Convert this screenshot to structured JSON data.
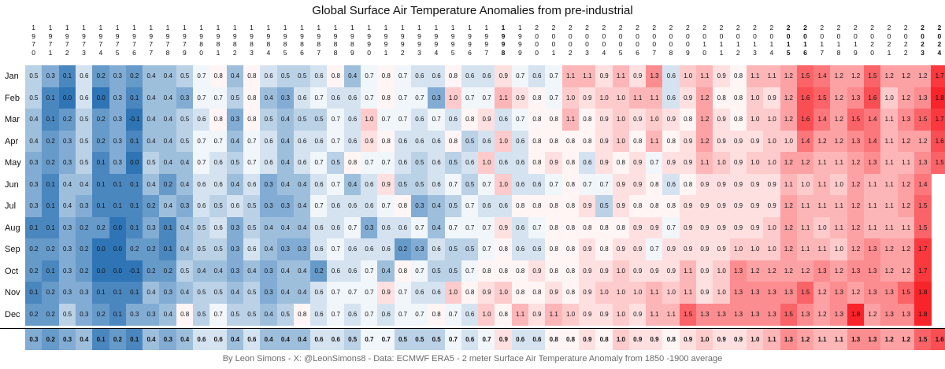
{
  "chart_data": {
    "type": "heatmap",
    "title": "Global Surface Air Temperature Anomalies from pre-industrial",
    "footer": "By Leon Simons - X: @LeonSimons8 - Data: ECMWF ERA5 - 2 meter Surface Air Temperature Anomaly from 1850 -1900 average",
    "years": [
      "1970",
      "1971",
      "1972",
      "1973",
      "1974",
      "1975",
      "1976",
      "1977",
      "1978",
      "1979",
      "1980",
      "1981",
      "1982",
      "1983",
      "1984",
      "1985",
      "1986",
      "1987",
      "1988",
      "1989",
      "1990",
      "1991",
      "1992",
      "1993",
      "1994",
      "1995",
      "1996",
      "1997",
      "1998",
      "1999",
      "2000",
      "2001",
      "2002",
      "2003",
      "2004",
      "2005",
      "2006",
      "2007",
      "2008",
      "2009",
      "2010",
      "2011",
      "2012",
      "2013",
      "2014",
      "2015",
      "2016",
      "2017",
      "2018",
      "2019",
      "2020",
      "2021",
      "2022",
      "2023",
      "2024"
    ],
    "bold_years": [
      "1998",
      "2015",
      "2016",
      "2023",
      "2024"
    ],
    "months": [
      "Jan",
      "Feb",
      "Mar",
      "Apr",
      "May",
      "Jun",
      "Jul",
      "Aug",
      "Sep",
      "Oct",
      "Nov",
      "Dec"
    ],
    "color_scale": {
      "low": "#2f75b5",
      "mid": "#ffffff",
      "high": "#f8242a",
      "min": 0.0,
      "mid_value": 0.75,
      "max": 1.8
    },
    "values": [
      [
        "0.5",
        "0.3",
        "0.1",
        "0.6",
        "0.2",
        "0.3",
        "0.2",
        "0.4",
        "0.4",
        "0.5",
        "0.7",
        "0.8",
        "0.4",
        "0.8",
        "0.6",
        "0.5",
        "0.5",
        "0.6",
        "0.8",
        "0.4",
        "0.7",
        "0.8",
        "0.7",
        "0.6",
        "0.6",
        "0.8",
        "0.6",
        "0.6",
        "0.9",
        "0.7",
        "0.6",
        "0.7",
        "1.1",
        "1.1",
        "0.9",
        "1.1",
        "0.9",
        "1.3",
        "0.6",
        "1.0",
        "1.1",
        "0.9",
        "0.8",
        "1.1",
        "1.1",
        "1.2",
        "1.5",
        "1.4",
        "1.2",
        "1.2",
        "1.5",
        "1.2",
        "1.2",
        "1.2",
        "1.7"
      ],
      [
        "0.5",
        "0.1",
        "0.0",
        "0.6",
        "0.0",
        "0.3",
        "0.1",
        "0.4",
        "0.4",
        "0.3",
        "0.7",
        "0.7",
        "0.5",
        "0.8",
        "0.4",
        "0.3",
        "0.6",
        "0.7",
        "0.6",
        "0.6",
        "0.7",
        "0.8",
        "0.7",
        "0.7",
        "0.3",
        "1.0",
        "0.7",
        "0.7",
        "1.1",
        "0.9",
        "0.8",
        "0.7",
        "1.0",
        "0.9",
        "1.0",
        "1.0",
        "1.1",
        "1.1",
        "0.6",
        "0.9",
        "1.2",
        "0.8",
        "0.8",
        "1.0",
        "0.9",
        "1.2",
        "1.6",
        "1.5",
        "1.2",
        "1.3",
        "1.6",
        "1.0",
        "1.2",
        "1.3",
        "1.8"
      ],
      [
        "0.4",
        "0.1",
        "0.2",
        "0.5",
        "0.2",
        "0.3",
        "-0.1",
        "0.4",
        "0.4",
        "0.5",
        "0.6",
        "0.8",
        "0.3",
        "0.8",
        "0.5",
        "0.4",
        "0.5",
        "0.5",
        "0.7",
        "0.6",
        "1.0",
        "0.7",
        "0.7",
        "0.6",
        "0.7",
        "0.6",
        "0.8",
        "0.9",
        "0.6",
        "0.7",
        "0.8",
        "0.8",
        "1.1",
        "0.8",
        "0.9",
        "1.0",
        "0.9",
        "1.0",
        "0.9",
        "0.8",
        "1.2",
        "0.9",
        "0.8",
        "1.0",
        "1.0",
        "1.2",
        "1.6",
        "1.4",
        "1.2",
        "1.5",
        "1.4",
        "1.1",
        "1.3",
        "1.5",
        "1.7"
      ],
      [
        "0.4",
        "0.2",
        "0.3",
        "0.5",
        "0.2",
        "0.3",
        "0.1",
        "0.4",
        "0.4",
        "0.5",
        "0.7",
        "0.7",
        "0.4",
        "0.7",
        "0.6",
        "0.4",
        "0.6",
        "0.6",
        "0.7",
        "0.6",
        "0.9",
        "0.8",
        "0.6",
        "0.6",
        "0.6",
        "0.8",
        "0.5",
        "0.6",
        "1.0",
        "0.6",
        "0.8",
        "0.8",
        "0.8",
        "0.8",
        "0.9",
        "1.0",
        "0.8",
        "1.1",
        "0.8",
        "0.9",
        "1.2",
        "0.9",
        "0.9",
        "0.9",
        "1.0",
        "1.0",
        "1.4",
        "1.2",
        "1.2",
        "1.3",
        "1.4",
        "1.1",
        "1.2",
        "1.2",
        "1.6"
      ],
      [
        "0.3",
        "0.2",
        "0.3",
        "0.5",
        "0.1",
        "0.3",
        "0.0",
        "0.5",
        "0.4",
        "0.4",
        "0.7",
        "0.6",
        "0.5",
        "0.7",
        "0.6",
        "0.4",
        "0.6",
        "0.7",
        "0.5",
        "0.8",
        "0.7",
        "0.7",
        "0.6",
        "0.5",
        "0.6",
        "0.5",
        "0.6",
        "1.0",
        "0.6",
        "0.6",
        "0.8",
        "0.9",
        "0.8",
        "0.6",
        "0.9",
        "0.8",
        "0.9",
        "0.7",
        "0.9",
        "0.9",
        "1.1",
        "1.0",
        "0.9",
        "1.0",
        "1.0",
        "1.2",
        "1.2",
        "1.1",
        "1.1",
        "1.2",
        "1.3",
        "1.1",
        "1.1",
        "1.3",
        "1.5"
      ],
      [
        "0.3",
        "0.1",
        "0.4",
        "0.4",
        "0.1",
        "0.1",
        "0.1",
        "0.4",
        "0.2",
        "0.4",
        "0.6",
        "0.6",
        "0.4",
        "0.6",
        "0.3",
        "0.4",
        "0.4",
        "0.6",
        "0.7",
        "0.4",
        "0.6",
        "0.9",
        "0.5",
        "0.5",
        "0.6",
        "0.7",
        "0.5",
        "0.7",
        "1.0",
        "0.6",
        "0.6",
        "0.7",
        "0.8",
        "0.7",
        "0.7",
        "0.9",
        "0.9",
        "0.8",
        "0.6",
        "0.8",
        "0.9",
        "0.9",
        "0.9",
        "0.9",
        "0.9",
        "1.1",
        "1.0",
        "1.1",
        "1.0",
        "1.2",
        "1.1",
        "1.1",
        "1.2",
        "1.4",
        ""
      ],
      [
        "0.3",
        "0.1",
        "0.4",
        "0.3",
        "0.1",
        "0.1",
        "0.1",
        "0.2",
        "0.4",
        "0.3",
        "0.6",
        "0.5",
        "0.6",
        "0.5",
        "0.3",
        "0.3",
        "0.4",
        "0.7",
        "0.6",
        "0.6",
        "0.6",
        "0.7",
        "0.8",
        "0.3",
        "0.4",
        "0.5",
        "0.7",
        "0.6",
        "0.6",
        "0.8",
        "0.8",
        "0.8",
        "0.8",
        "0.9",
        "0.5",
        "0.9",
        "0.8",
        "0.8",
        "0.8",
        "0.9",
        "0.9",
        "0.9",
        "0.9",
        "0.9",
        "0.9",
        "1.2",
        "1.1",
        "1.1",
        "1.1",
        "1.2",
        "1.1",
        "1.1",
        "1.2",
        "1.5",
        ""
      ],
      [
        "0.1",
        "0.1",
        "0.3",
        "0.2",
        "0.2",
        "0.0",
        "0.1",
        "0.3",
        "0.1",
        "0.4",
        "0.5",
        "0.6",
        "0.3",
        "0.5",
        "0.4",
        "0.4",
        "0.4",
        "0.6",
        "0.6",
        "0.7",
        "0.3",
        "0.6",
        "0.6",
        "0.7",
        "0.4",
        "0.7",
        "0.7",
        "0.7",
        "0.9",
        "0.6",
        "0.7",
        "0.8",
        "0.8",
        "0.8",
        "0.8",
        "0.8",
        "0.9",
        "0.9",
        "0.7",
        "0.9",
        "0.9",
        "0.9",
        "0.9",
        "0.9",
        "1.0",
        "1.2",
        "1.1",
        "1.0",
        "1.1",
        "1.2",
        "1.1",
        "1.1",
        "1.1",
        "1.5",
        ""
      ],
      [
        "0.2",
        "0.2",
        "0.3",
        "0.2",
        "0.0",
        "0.0",
        "0.2",
        "0.2",
        "0.1",
        "0.4",
        "0.5",
        "0.5",
        "0.3",
        "0.6",
        "0.4",
        "0.3",
        "0.3",
        "0.6",
        "0.7",
        "0.6",
        "0.6",
        "0.6",
        "0.2",
        "0.3",
        "0.6",
        "0.5",
        "0.5",
        "0.7",
        "0.8",
        "0.6",
        "0.6",
        "0.8",
        "0.8",
        "0.9",
        "0.8",
        "0.9",
        "0.9",
        "0.7",
        "0.9",
        "0.9",
        "0.9",
        "0.9",
        "1.0",
        "1.0",
        "1.0",
        "1.2",
        "1.1",
        "1.1",
        "1.0",
        "1.2",
        "1.3",
        "1.2",
        "1.2",
        "1.7",
        ""
      ],
      [
        "0.2",
        "0.1",
        "0.3",
        "0.2",
        "0.0",
        "0.0",
        "-0.1",
        "0.2",
        "0.2",
        "0.5",
        "0.4",
        "0.4",
        "0.3",
        "0.4",
        "0.3",
        "0.4",
        "0.4",
        "0.2",
        "0.6",
        "0.6",
        "0.7",
        "0.4",
        "0.8",
        "0.7",
        "0.5",
        "0.5",
        "0.7",
        "0.8",
        "0.8",
        "0.8",
        "0.9",
        "0.8",
        "0.8",
        "0.9",
        "0.9",
        "1.0",
        "0.9",
        "0.9",
        "0.9",
        "1.1",
        "0.9",
        "1.0",
        "1.3",
        "1.2",
        "1.2",
        "1.2",
        "1.2",
        "1.3",
        "1.2",
        "1.3",
        "1.3",
        "1.2",
        "1.2",
        "1.7",
        ""
      ],
      [
        "0.1",
        "0.2",
        "0.3",
        "0.3",
        "0.1",
        "0.1",
        "0.1",
        "0.4",
        "0.3",
        "0.4",
        "0.5",
        "0.5",
        "0.4",
        "0.5",
        "0.3",
        "0.4",
        "0.4",
        "0.6",
        "0.7",
        "0.7",
        "0.7",
        "0.9",
        "0.7",
        "0.6",
        "0.6",
        "1.0",
        "0.8",
        "0.9",
        "1.0",
        "0.8",
        "0.8",
        "0.9",
        "0.8",
        "0.9",
        "1.0",
        "1.0",
        "1.0",
        "1.1",
        "1.0",
        "1.1",
        "0.9",
        "1.0",
        "1.3",
        "1.3",
        "1.3",
        "1.3",
        "1.5",
        "1.2",
        "1.3",
        "1.2",
        "1.3",
        "1.3",
        "1.5",
        "1.8",
        ""
      ],
      [
        "0.2",
        "0.2",
        "0.5",
        "0.3",
        "0.2",
        "0.1",
        "0.3",
        "0.3",
        "0.4",
        "0.8",
        "0.5",
        "0.7",
        "0.5",
        "0.5",
        "0.4",
        "0.5",
        "0.8",
        "0.6",
        "0.7",
        "0.6",
        "0.7",
        "0.6",
        "0.7",
        "0.7",
        "0.8",
        "0.7",
        "0.6",
        "1.0",
        "0.8",
        "1.1",
        "0.9",
        "1.1",
        "1.0",
        "0.9",
        "0.9",
        "1.0",
        "0.9",
        "1.1",
        "1.1",
        "1.5",
        "1.3",
        "1.3",
        "1.3",
        "1.3",
        "1.3",
        "1.5",
        "1.3",
        "1.2",
        "1.3",
        "1.8",
        "1.2",
        "1.3",
        "1.3",
        "1.8",
        ""
      ]
    ],
    "annual_average": [
      "0.3",
      "0.2",
      "0.3",
      "0.4",
      "0.1",
      "0.2",
      "0.1",
      "0.4",
      "0.3",
      "0.4",
      "0.6",
      "0.6",
      "0.4",
      "0.6",
      "0.4",
      "0.4",
      "0.4",
      "0.6",
      "0.6",
      "0.5",
      "0.7",
      "0.7",
      "0.5",
      "0.5",
      "0.5",
      "0.7",
      "0.6",
      "0.7",
      "0.9",
      "0.6",
      "0.6",
      "0.8",
      "0.8",
      "0.9",
      "0.8",
      "1.0",
      "0.9",
      "0.9",
      "0.8",
      "0.9",
      "1.0",
      "0.9",
      "0.9",
      "1.0",
      "1.1",
      "1.3",
      "1.2",
      "1.1",
      "1.1",
      "1.3",
      "1.3",
      "1.2",
      "1.2",
      "1.5",
      "1.6"
    ]
  }
}
